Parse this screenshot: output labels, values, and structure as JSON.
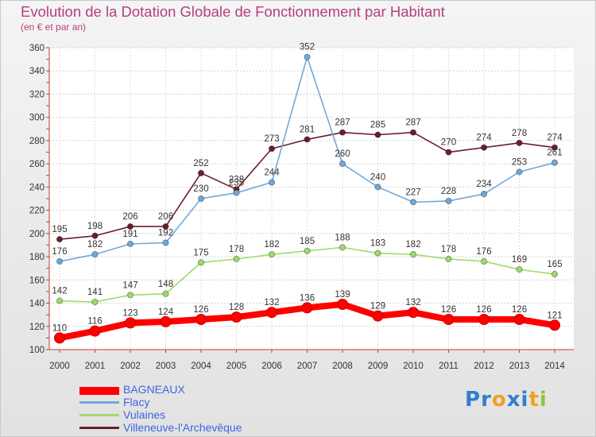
{
  "header": {
    "title": "Evolution de la Dotation Globale de Fonctionnement par Habitant",
    "subtitle": "(en € et par an)"
  },
  "logo": {
    "text": "Proxiti",
    "letters": [
      {
        "ch": "P",
        "color": "#2f7fd0"
      },
      {
        "ch": "r",
        "color": "#2f7fd0"
      },
      {
        "ch": "o",
        "color": "#f0a020"
      },
      {
        "ch": "x",
        "color": "#2f7fd0"
      },
      {
        "ch": "i",
        "color": "#2f7fd0"
      },
      {
        "ch": "t",
        "color": "#f0a020"
      },
      {
        "ch": "i",
        "color": "#8cc63f"
      }
    ]
  },
  "chart_data": {
    "type": "line",
    "title": "Evolution de la Dotation Globale de Fonctionnement par Habitant",
    "subtitle": "(en € et par an)",
    "xlabel": "",
    "ylabel": "",
    "x": [
      "2000",
      "2001",
      "2002",
      "2003",
      "2004",
      "2005",
      "2006",
      "2007",
      "2008",
      "2009",
      "2010",
      "2011",
      "2012",
      "2013",
      "2014"
    ],
    "ylim": [
      100,
      360
    ],
    "yticks": [
      100,
      120,
      140,
      160,
      180,
      200,
      220,
      240,
      260,
      280,
      300,
      320,
      340,
      360
    ],
    "grid": true,
    "legend_position": "bottom-left",
    "series": [
      {
        "name": "BAGNEAUX",
        "color": "#ff0000",
        "values": [
          110,
          116,
          123,
          124,
          126,
          128,
          132,
          136,
          139,
          129,
          132,
          126,
          126,
          126,
          121
        ]
      },
      {
        "name": "Flacy",
        "color": "#6fa8dc",
        "values": [
          176,
          182,
          191,
          192,
          230,
          235,
          244,
          352,
          260,
          240,
          227,
          228,
          234,
          253,
          261
        ]
      },
      {
        "name": "Vulaines",
        "color": "#9cdc6a",
        "values": [
          142,
          141,
          147,
          148,
          175,
          178,
          182,
          185,
          188,
          183,
          182,
          178,
          176,
          169,
          165
        ]
      },
      {
        "name": "Villeneuve-l'Archevêque",
        "color": "#6b1f2a",
        "values": [
          195,
          198,
          206,
          206,
          252,
          238,
          273,
          281,
          287,
          285,
          287,
          270,
          274,
          278,
          274
        ]
      }
    ]
  }
}
